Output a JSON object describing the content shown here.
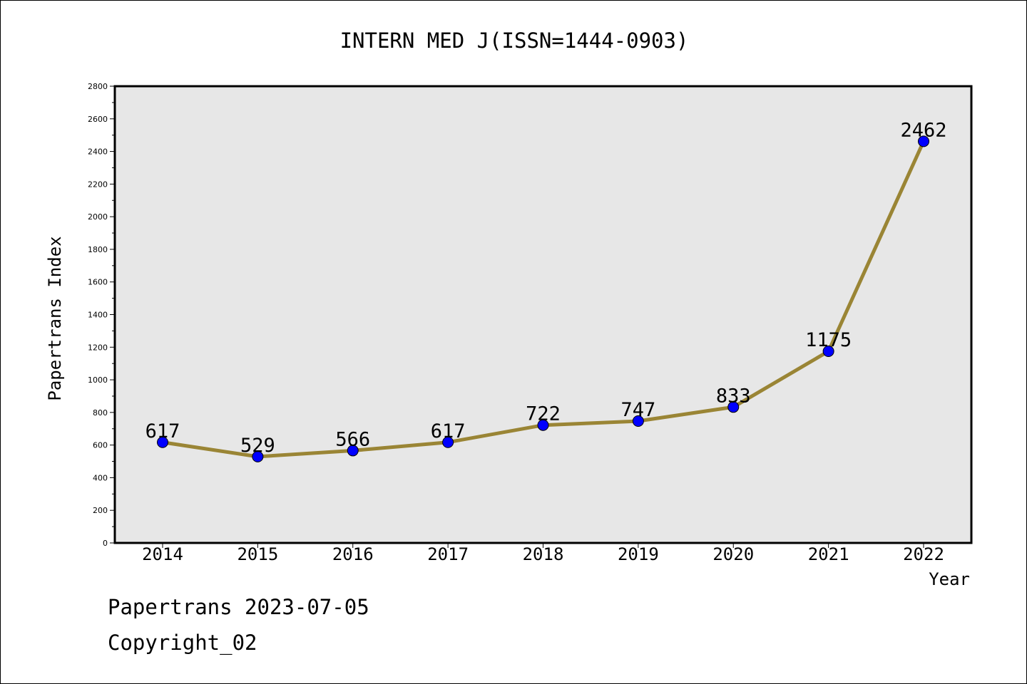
{
  "chart_data": {
    "type": "line",
    "title": "INTERN MED J(ISSN=1444-0903)",
    "xlabel": "Year",
    "ylabel": "Papertrans Index",
    "categories": [
      "2014",
      "2015",
      "2016",
      "2017",
      "2018",
      "2019",
      "2020",
      "2021",
      "2022"
    ],
    "series": [
      {
        "values": [
          617,
          529,
          566,
          617,
          722,
          747,
          833,
          1175,
          2462
        ]
      }
    ],
    "data_labels": [
      "617",
      "529",
      "566",
      "617",
      "722",
      "747",
      "833",
      "1175",
      "2462"
    ],
    "ylim": [
      0,
      2800
    ],
    "yticks": [
      0,
      200,
      400,
      600,
      800,
      1000,
      1200,
      1400,
      1600,
      1800,
      2000,
      2200,
      2400,
      2600,
      2800
    ],
    "ytick_labels": [
      "0",
      "200",
      "400",
      "600",
      "800",
      "1000",
      "1200",
      "1400",
      "1600",
      "1800",
      "2000",
      "2200",
      "2400",
      "2600",
      "2800"
    ],
    "grid": false,
    "legend": "none",
    "colors": {
      "line": "#9a8535",
      "marker": "#0000ff",
      "plot_background": "#e7e7e7"
    }
  },
  "footer": {
    "date_line": "Papertrans 2023-07-05",
    "copyright": "Copyright_02"
  }
}
